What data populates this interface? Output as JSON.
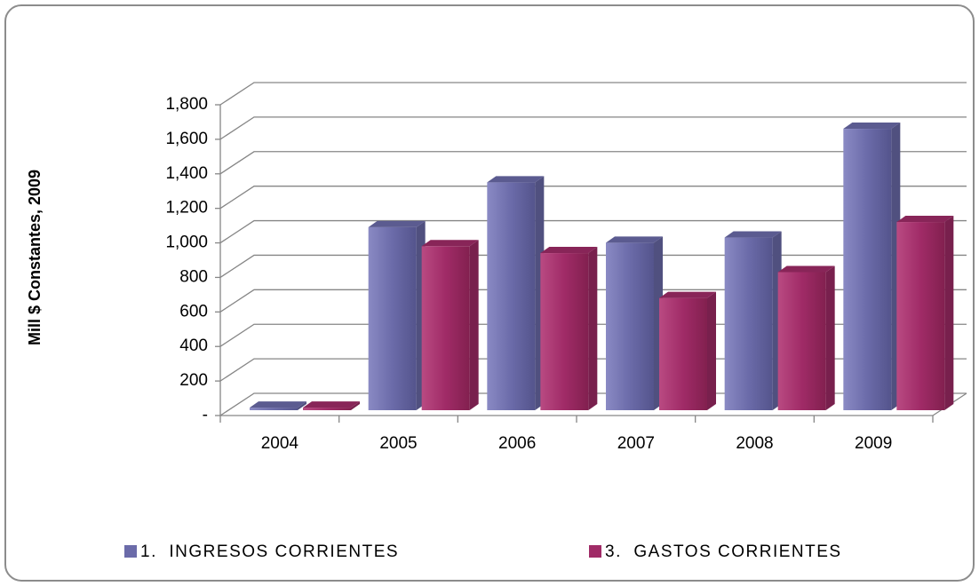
{
  "chart_data": {
    "type": "bar3d",
    "y_label": "Mill $ Constantes, 2009",
    "categories": [
      "2004",
      "2005",
      "2006",
      "2007",
      "2008",
      "2009"
    ],
    "series": [
      {
        "name": "1.  INGRESOS CORRIENTES",
        "color": "#6b6ba9",
        "values": [
          15,
          1060,
          1320,
          970,
          1000,
          1630
        ]
      },
      {
        "name": "3.  GASTOS CORRIENTES",
        "color": "#a02b67",
        "values": [
          15,
          950,
          910,
          650,
          800,
          1090
        ]
      }
    ],
    "ylim": [
      0,
      1800
    ],
    "yticks": [
      {
        "value": 0,
        "label": "-"
      },
      200,
      400,
      600,
      800,
      {
        "value": 1000,
        "label": "1,000"
      },
      {
        "value": 1200,
        "label": "1,200"
      },
      {
        "value": 1400,
        "label": "1,400"
      },
      {
        "value": 1600,
        "label": "1,600"
      },
      {
        "value": 1800,
        "label": "1,800"
      }
    ],
    "grid": true,
    "legend": "bottom"
  }
}
